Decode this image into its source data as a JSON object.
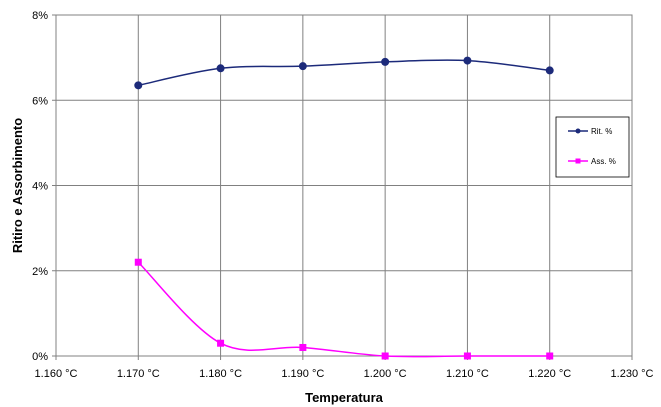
{
  "chart_data": {
    "type": "line",
    "title": "",
    "xlabel": "Temperatura",
    "ylabel": "Ritiro e Assorbimento",
    "x_ticks": [
      1160,
      1170,
      1180,
      1190,
      1200,
      1210,
      1220,
      1230
    ],
    "x_tick_labels": [
      "1.160 °C",
      "1.170 °C",
      "1.180 °C",
      "1.190 °C",
      "1.200 °C",
      "1.210 °C",
      "1.220 °C",
      "1.230 °C"
    ],
    "xlim": [
      1160,
      1230
    ],
    "y_ticks": [
      0,
      2,
      4,
      6,
      8
    ],
    "y_tick_labels": [
      "0%",
      "2%",
      "4%",
      "6%",
      "8%"
    ],
    "ylim": [
      0,
      8
    ],
    "grid": true,
    "legend_position": "right",
    "x": [
      1170,
      1180,
      1190,
      1200,
      1210,
      1220
    ],
    "series": [
      {
        "name": "Rit. %",
        "values": [
          6.35,
          6.75,
          6.8,
          6.9,
          6.93,
          6.7
        ],
        "color": "#1c2a7a",
        "marker": "circle"
      },
      {
        "name": "Ass. %",
        "values": [
          2.2,
          0.3,
          0.2,
          0.0,
          0.0,
          0.0
        ],
        "color": "#ff00ff",
        "marker": "square"
      }
    ]
  }
}
